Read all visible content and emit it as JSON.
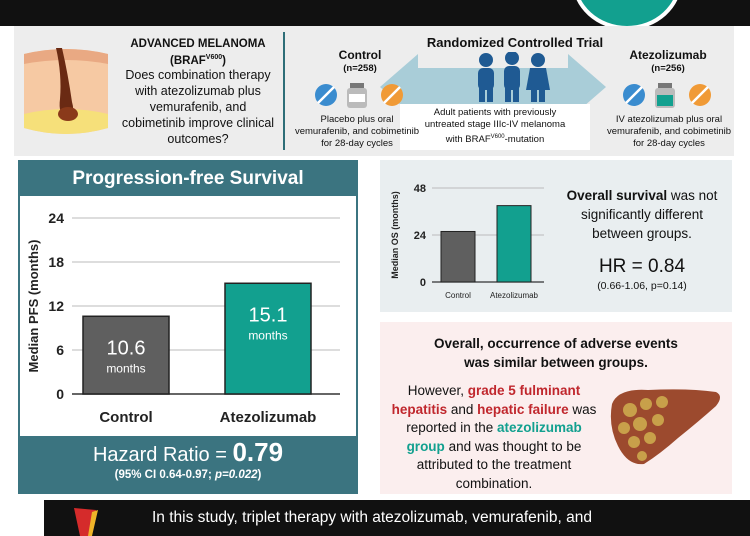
{
  "question": {
    "title": "ADVANCED MELANOMA",
    "title_mut": "(BRAF",
    "title_mut_sup": "V600",
    "title_mut_end": ")",
    "text": "Does combination therapy with atezolizumab plus vemurafenib, and cobimetinib improve clinical outcomes?"
  },
  "trial": {
    "title": "Randomized Controlled Trial",
    "population_line1": "Adult patients with previously",
    "population_line2": "untreated stage IIIc-IV melanoma",
    "population_line3a": "with BRAF",
    "population_line3_sup": "V600",
    "population_line3b": "-mutation",
    "control": {
      "name": "Control",
      "n": "(n=258)",
      "desc": [
        "Placebo plus oral",
        "vemurafenib, and cobimetinib",
        "for 28-day cycles"
      ]
    },
    "treatment": {
      "name": "Atezolizumab",
      "n": "(n=256)",
      "desc": [
        "IV atezolizumab plus oral",
        "vemurafenib, and cobimetinib",
        "for 28-day cycles"
      ]
    }
  },
  "pfs": {
    "title": "Progression-free Survival",
    "hr_label": "Hazard Ratio = ",
    "hr_value": "0.79",
    "ci_text": "(95% CI 0.64-0.97; ",
    "p_text": "p=0.022",
    "ci_end": ")"
  },
  "os": {
    "text_bold": "Overall survival",
    "text_rest1": " was not",
    "text_rest2": "significantly different",
    "text_rest3": "between groups.",
    "hr": "HR = 0.84",
    "ci": "(0.66-1.06, p=0.14)"
  },
  "adverse": {
    "line1": "Overall, occurrence of adverse events",
    "line2": "was similar between groups.",
    "p2_a": "However, ",
    "p2_b": "grade 5 fulminant",
    "p2_c": "hepatitis",
    "p2_d": " and ",
    "p2_e": "hepatic failure",
    "p2_f": " was",
    "p2_g": "reported in the ",
    "p2_h": "atezolizumab",
    "p2_i": "group",
    "p2_j": " and was thought to be",
    "p2_k": "attributed to the treatment",
    "p2_l": "combination."
  },
  "conclusion": "In this study, triplet therapy with atezolizumab, vemurafenib, and",
  "colors": {
    "teal": "#12a08f",
    "dark_teal": "#3b7480",
    "control_gray": "#5f5f5f",
    "red": "#c0272d"
  },
  "chart_data": [
    {
      "type": "bar",
      "categories": [
        "Control",
        "Atezolizumab"
      ],
      "values": [
        10.6,
        15.1
      ],
      "value_labels": [
        "10.6",
        "15.1"
      ],
      "unit_label": "months",
      "ylabel": "Median PFS (months)",
      "yticks": [
        "0",
        "6",
        "12",
        "18",
        "24"
      ],
      "ylim": [
        0,
        24
      ],
      "grid": true
    },
    {
      "type": "bar",
      "categories": [
        "Control",
        "Atezolizumab"
      ],
      "values": [
        25.8,
        39.0
      ],
      "ylabel": "Median OS (months)",
      "yticks": [
        "0",
        "24",
        "48"
      ],
      "ylim": [
        0,
        48
      ],
      "grid": true
    }
  ]
}
